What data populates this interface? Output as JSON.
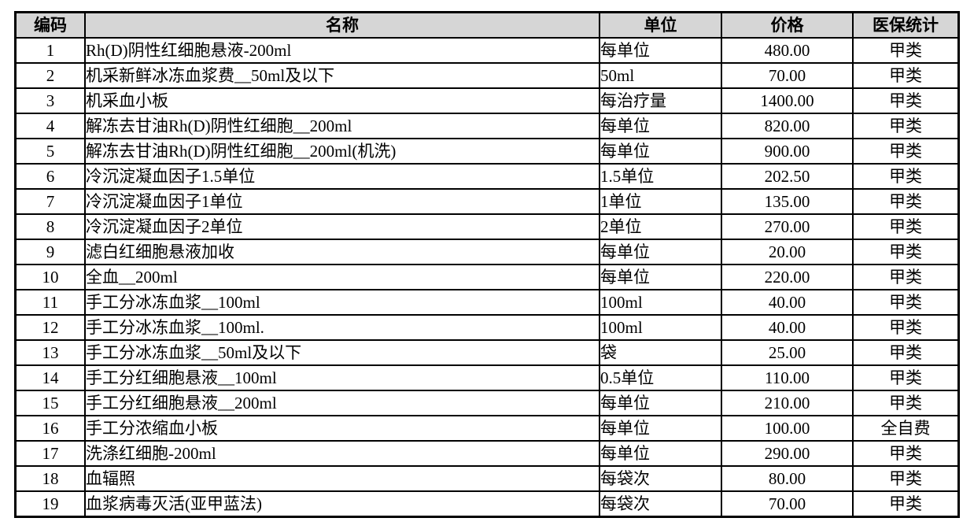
{
  "colors": {
    "header_bg": "#d6d6d6",
    "border": "#000000",
    "text": "#000000",
    "page_bg": "#ffffff"
  },
  "table": {
    "headers": {
      "code": "编码",
      "name": "名称",
      "unit": "单位",
      "price": "价格",
      "insurance": "医保统计"
    },
    "rows": [
      {
        "code": "1",
        "name": "Rh(D)阴性红细胞悬液-200ml",
        "unit": "每单位",
        "price": "480.00",
        "insurance": "甲类"
      },
      {
        "code": "2",
        "name": "机采新鲜冰冻血浆费__50ml及以下",
        "unit": "50ml",
        "price": "70.00",
        "insurance": "甲类"
      },
      {
        "code": "3",
        "name": "机采血小板",
        "unit": "每治疗量",
        "price": "1400.00",
        "insurance": "甲类"
      },
      {
        "code": "4",
        "name": "解冻去甘油Rh(D)阴性红细胞__200ml",
        "unit": "每单位",
        "price": "820.00",
        "insurance": "甲类"
      },
      {
        "code": "5",
        "name": "解冻去甘油Rh(D)阴性红细胞__200ml(机洗)",
        "unit": "每单位",
        "price": "900.00",
        "insurance": "甲类"
      },
      {
        "code": "6",
        "name": "冷沉淀凝血因子1.5单位",
        "unit": "1.5单位",
        "price": "202.50",
        "insurance": "甲类"
      },
      {
        "code": "7",
        "name": "冷沉淀凝血因子1单位",
        "unit": "1单位",
        "price": "135.00",
        "insurance": "甲类"
      },
      {
        "code": "8",
        "name": "冷沉淀凝血因子2单位",
        "unit": "2单位",
        "price": "270.00",
        "insurance": "甲类"
      },
      {
        "code": "9",
        "name": "滤白红细胞悬液加收",
        "unit": "每单位",
        "price": "20.00",
        "insurance": "甲类"
      },
      {
        "code": "10",
        "name": "全血__200ml",
        "unit": "每单位",
        "price": "220.00",
        "insurance": "甲类"
      },
      {
        "code": "11",
        "name": "手工分冰冻血浆__100ml",
        "unit": "100ml",
        "price": "40.00",
        "insurance": "甲类"
      },
      {
        "code": "12",
        "name": "手工分冰冻血浆__100ml.",
        "unit": "100ml",
        "price": "40.00",
        "insurance": "甲类"
      },
      {
        "code": "13",
        "name": "手工分冰冻血浆__50ml及以下",
        "unit": "袋",
        "price": "25.00",
        "insurance": "甲类"
      },
      {
        "code": "14",
        "name": "手工分红细胞悬液__100ml",
        "unit": "0.5单位",
        "price": "110.00",
        "insurance": "甲类"
      },
      {
        "code": "15",
        "name": "手工分红细胞悬液__200ml",
        "unit": "每单位",
        "price": "210.00",
        "insurance": "甲类"
      },
      {
        "code": "16",
        "name": "手工分浓缩血小板",
        "unit": "每单位",
        "price": "100.00",
        "insurance": "全自费"
      },
      {
        "code": "17",
        "name": "洗涤红细胞-200ml",
        "unit": "每单位",
        "price": "290.00",
        "insurance": "甲类"
      },
      {
        "code": "18",
        "name": "血辐照",
        "unit": "每袋次",
        "price": "80.00",
        "insurance": "甲类"
      },
      {
        "code": "19",
        "name": "血浆病毒灭活(亚甲蓝法)",
        "unit": "每袋次",
        "price": "70.00",
        "insurance": "甲类"
      }
    ]
  }
}
